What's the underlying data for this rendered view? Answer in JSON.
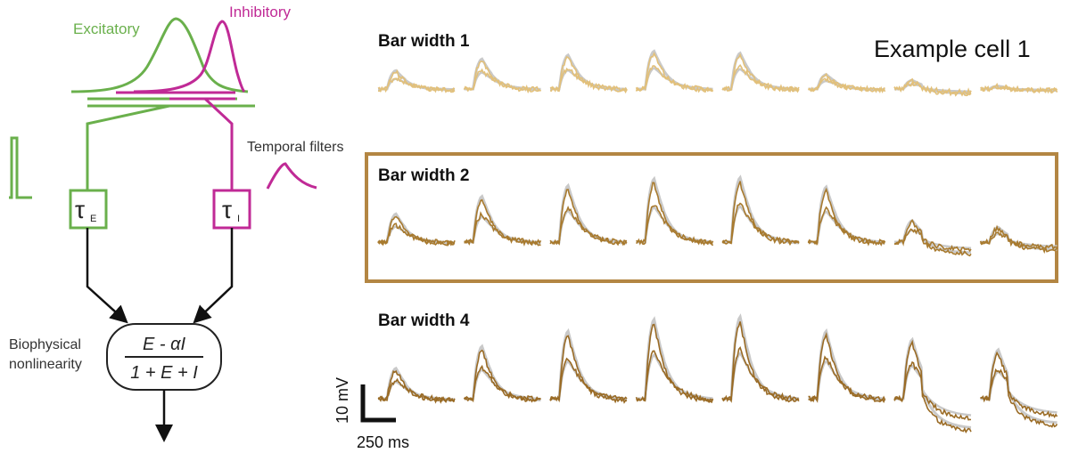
{
  "colors": {
    "excitatory": "#6ab04c",
    "inhibitory": "#c02a96",
    "model_trace": "#c9c9c9",
    "bar1_data": "#e2c07a",
    "bar2_data": "#a87a2e",
    "bar4_data": "#9a6b25",
    "box_outline": "#b38643"
  },
  "model_schematic": {
    "excitatory_label": "Excitatory",
    "inhibitory_label": "Inhibitory",
    "temporal_filters_label": "Temporal filters",
    "tau_symbol": "τ",
    "tau_e_subscript": "E",
    "tau_i_subscript": "I",
    "nonlinearity_label_line1": "Biophysical",
    "nonlinearity_label_line2": "nonlinearity",
    "equation_numerator": "E - αI",
    "equation_denominator": "1 + E + I"
  },
  "example_title": "Example cell 1",
  "rows": [
    {
      "title": "Bar width 1",
      "highlighted": false,
      "peaks": [
        0.38,
        0.62,
        0.7,
        0.78,
        0.74,
        0.3,
        0.18,
        0.06
      ]
    },
    {
      "title": "Bar width 2",
      "highlighted": true,
      "peaks": [
        0.42,
        0.68,
        0.84,
        0.94,
        0.96,
        0.82,
        0.32,
        0.22
      ]
    },
    {
      "title": "Bar width 4",
      "highlighted": false,
      "peaks": [
        0.36,
        0.62,
        0.8,
        0.94,
        0.97,
        0.8,
        0.7,
        0.58
      ]
    }
  ],
  "scale_bar": {
    "vertical_label": "10 mV",
    "horizontal_label": "250 ms"
  }
}
